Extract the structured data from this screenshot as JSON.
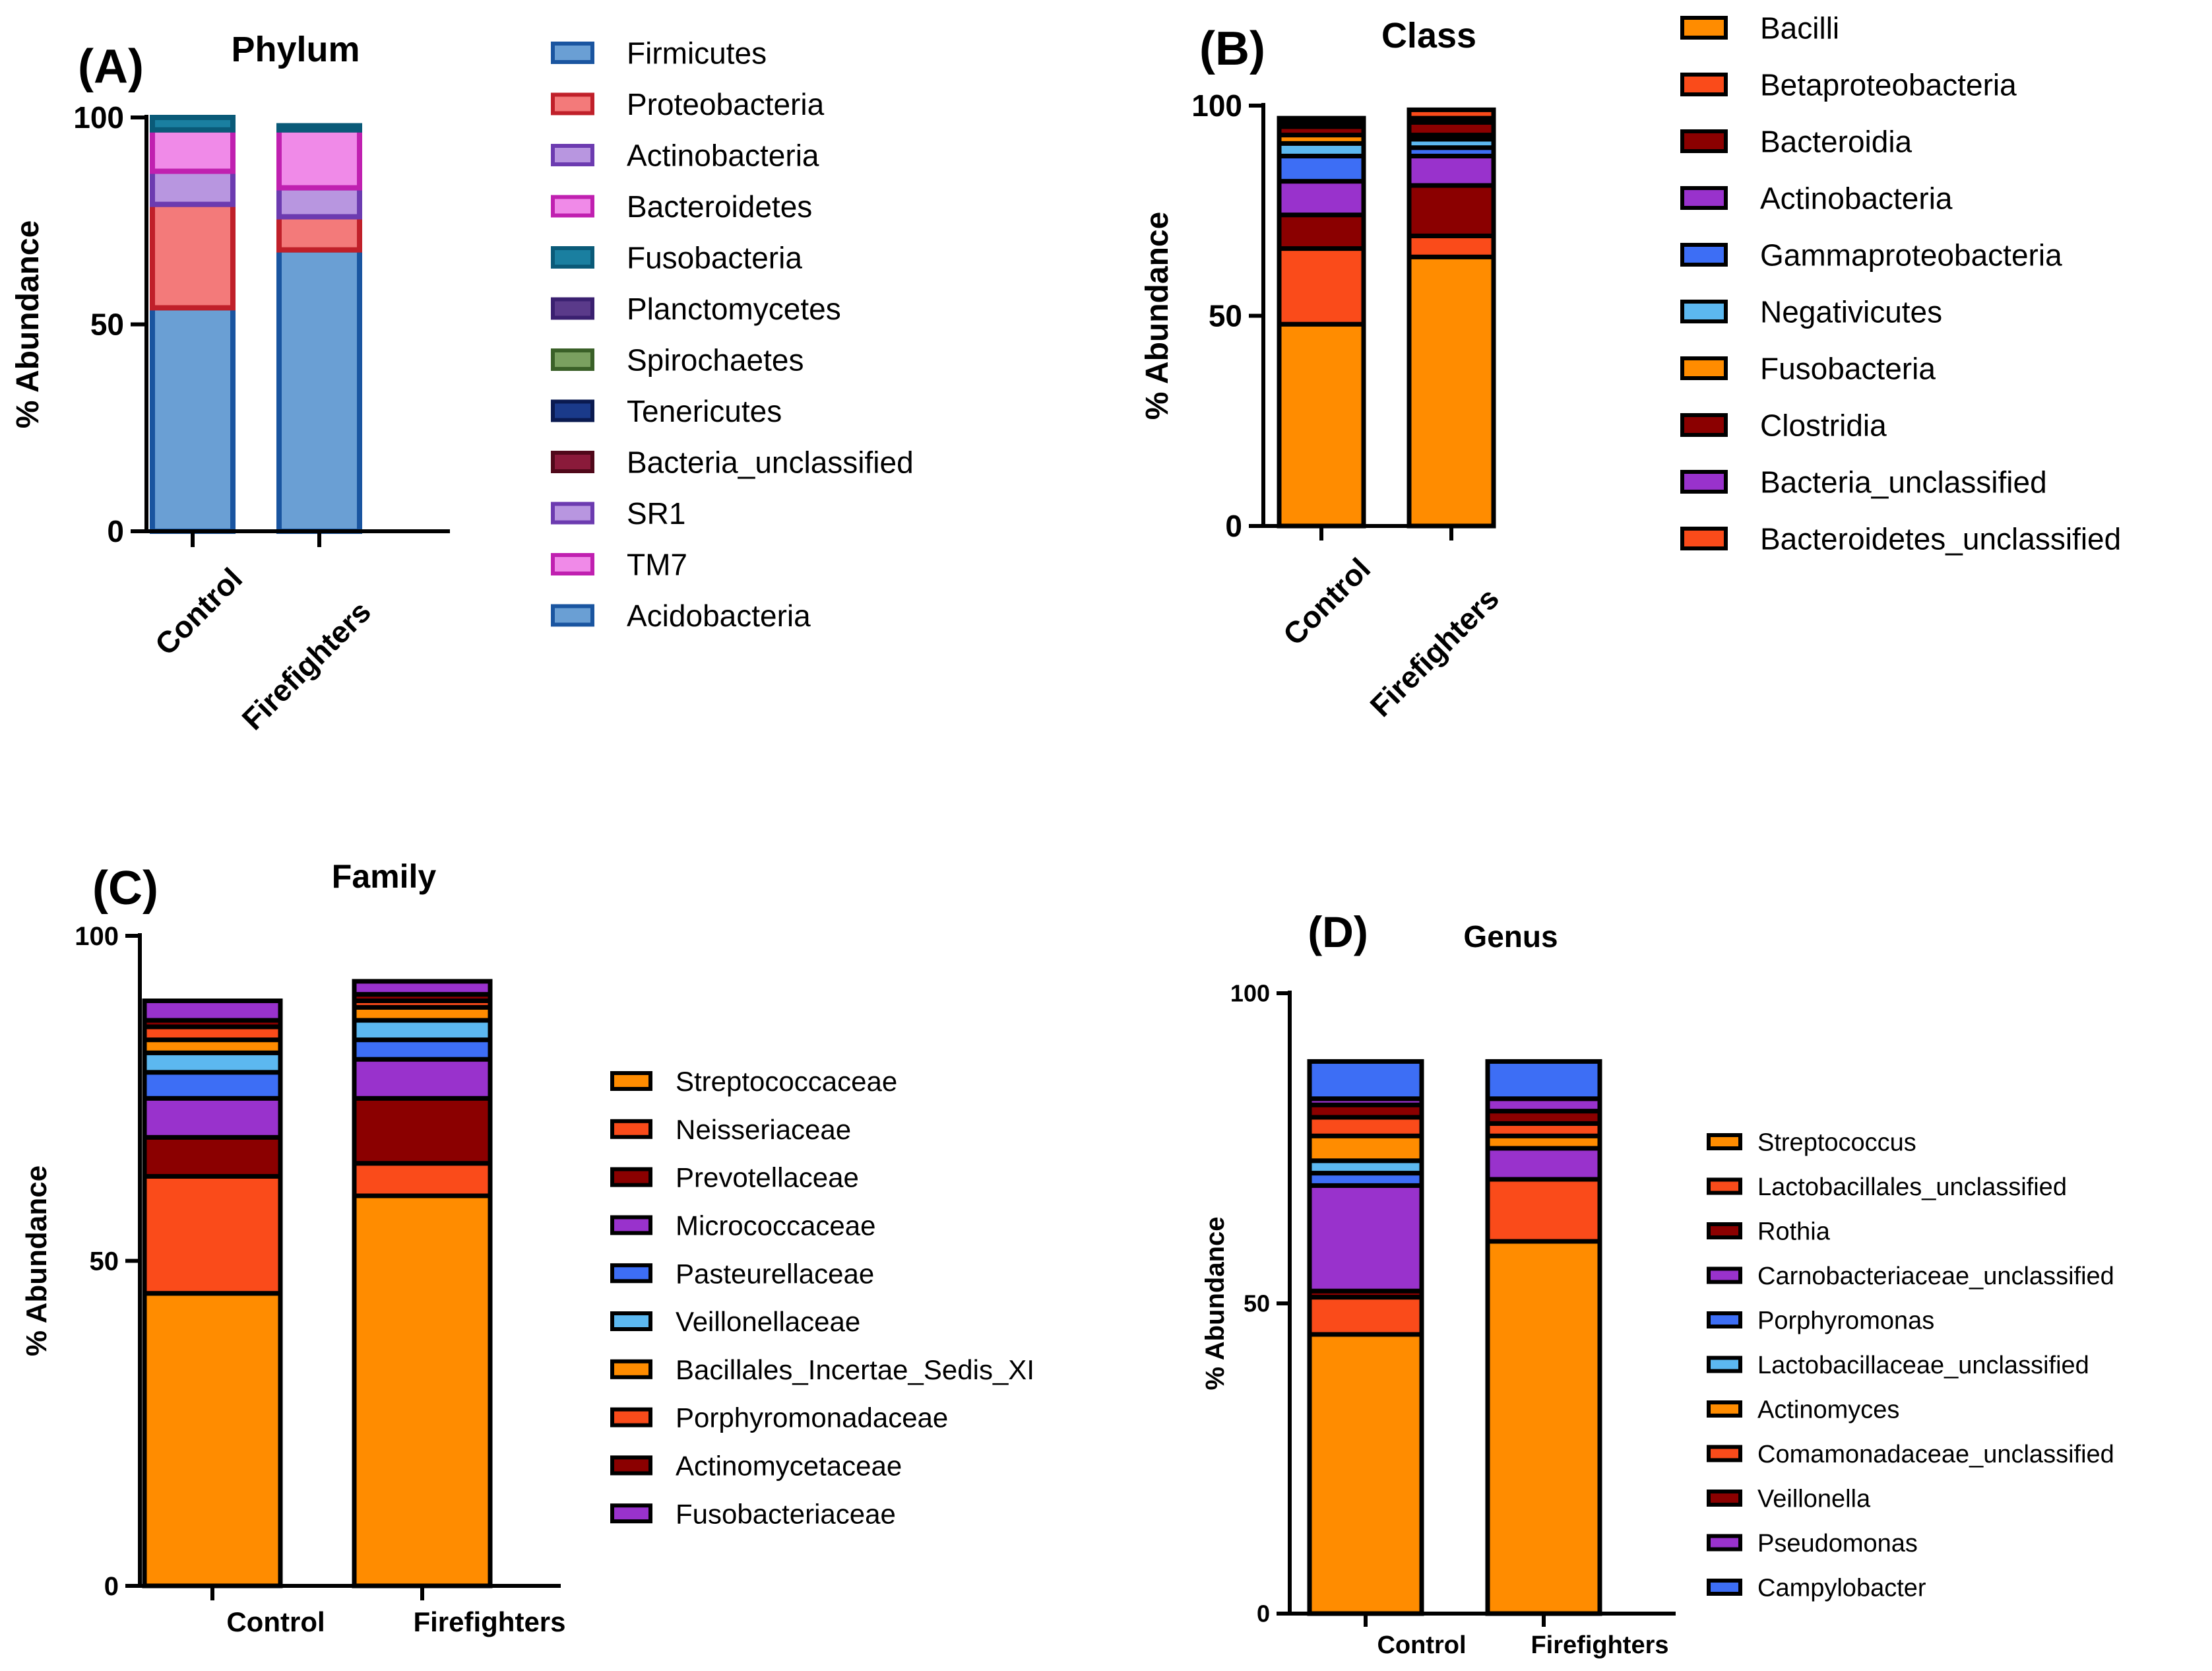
{
  "chart_data": [
    {
      "type": "bar",
      "stacked": true,
      "panel_label": "(A)",
      "title": "Phylum",
      "xlabel": "",
      "ylabel": "% Abundance",
      "ylim": [
        0,
        100
      ],
      "yticks": [
        "0",
        "50",
        "100"
      ],
      "categories": [
        "Control",
        "Firefighters"
      ],
      "series": [
        {
          "name": "Firmicutes",
          "fill": "#6a9fd4",
          "edge": "#1a55a0",
          "values": [
            54,
            68
          ]
        },
        {
          "name": "Proteobacteria",
          "fill": "#f37a7a",
          "edge": "#c0202a",
          "values": [
            25,
            8
          ]
        },
        {
          "name": "Actinobacteria",
          "fill": "#b896e0",
          "edge": "#6c3bb0",
          "values": [
            8,
            7
          ]
        },
        {
          "name": "Bacteroidetes",
          "fill": "#f08ae8",
          "edge": "#c020b0",
          "values": [
            10,
            14
          ]
        },
        {
          "name": "Fusobacteria",
          "fill": "#1a7fa0",
          "edge": "#0a5a78",
          "values": [
            3,
            1
          ]
        },
        {
          "name": "Planctomycetes",
          "fill": "#5a3a8a",
          "edge": "#3a2070",
          "values": [
            0,
            0
          ]
        },
        {
          "name": "Spirochaetes",
          "fill": "#7aa060",
          "edge": "#3a6028",
          "values": [
            0,
            0
          ]
        },
        {
          "name": "Tenericutes",
          "fill": "#1a3a8a",
          "edge": "#0a1a50",
          "values": [
            0,
            0
          ]
        },
        {
          "name": "Bacteria_unclassified",
          "fill": "#8a1a3a",
          "edge": "#50081a",
          "values": [
            0,
            0
          ]
        },
        {
          "name": "SR1",
          "fill": "#b896e0",
          "edge": "#6c3bb0",
          "values": [
            0,
            0
          ]
        },
        {
          "name": "TM7",
          "fill": "#f08ae8",
          "edge": "#c020b0",
          "values": [
            0,
            0
          ]
        },
        {
          "name": "Acidobacteria",
          "fill": "#6a9fd4",
          "edge": "#1a55a0",
          "values": [
            0,
            0
          ]
        }
      ]
    },
    {
      "type": "bar",
      "stacked": true,
      "panel_label": "(B)",
      "title": "Class",
      "xlabel": "",
      "ylabel": "% Abundance",
      "ylim": [
        0,
        100
      ],
      "yticks": [
        "0",
        "50",
        "100"
      ],
      "categories": [
        "Control",
        "Firefighters"
      ],
      "series": [
        {
          "name": "Bacilli",
          "fill": "#ff8c00",
          "edge": "#000000",
          "values": [
            48,
            64
          ]
        },
        {
          "name": "Betaproteobacteria",
          "fill": "#fa4b1a",
          "edge": "#000000",
          "values": [
            18,
            5
          ]
        },
        {
          "name": "Bacteroidia",
          "fill": "#8b0000",
          "edge": "#000000",
          "values": [
            8,
            12
          ]
        },
        {
          "name": "Actinobacteria",
          "fill": "#9932cc",
          "edge": "#000000",
          "values": [
            8,
            7
          ]
        },
        {
          "name": "Gammaproteobacteria",
          "fill": "#3d6ef5",
          "edge": "#000000",
          "values": [
            6,
            2
          ]
        },
        {
          "name": "Negativicutes",
          "fill": "#5cb8f0",
          "edge": "#000000",
          "values": [
            3,
            2
          ]
        },
        {
          "name": "Fusobacteria",
          "fill": "#ff8c00",
          "edge": "#000000",
          "values": [
            2,
            1
          ]
        },
        {
          "name": "Clostridia",
          "fill": "#8b0000",
          "edge": "#000000",
          "values": [
            2,
            3
          ]
        },
        {
          "name": "Bacteria_unclassified",
          "fill": "#9932cc",
          "edge": "#000000",
          "values": [
            1,
            1
          ]
        },
        {
          "name": "Bacteroidetes_unclassified",
          "fill": "#fa4b1a",
          "edge": "#000000",
          "values": [
            1,
            2
          ]
        }
      ]
    },
    {
      "type": "bar",
      "stacked": true,
      "panel_label": "(C)",
      "title": "Family",
      "xlabel": "",
      "ylabel": "% Abundance",
      "ylim": [
        0,
        100
      ],
      "yticks": [
        "0",
        "50",
        "100"
      ],
      "categories": [
        "Control",
        "Firefighters"
      ],
      "series": [
        {
          "name": "Streptococcaceae",
          "fill": "#ff8c00",
          "edge": "#000000",
          "values": [
            45,
            60
          ]
        },
        {
          "name": "Neisseriaceae",
          "fill": "#fa4b1a",
          "edge": "#000000",
          "values": [
            18,
            5
          ]
        },
        {
          "name": "Prevotellaceae",
          "fill": "#8b0000",
          "edge": "#000000",
          "values": [
            6,
            10
          ]
        },
        {
          "name": "Micrococcaceae",
          "fill": "#9932cc",
          "edge": "#000000",
          "values": [
            6,
            6
          ]
        },
        {
          "name": "Pasteurellaceae",
          "fill": "#3d6ef5",
          "edge": "#000000",
          "values": [
            4,
            3
          ]
        },
        {
          "name": "Veillonellaceae",
          "fill": "#5cb8f0",
          "edge": "#000000",
          "values": [
            3,
            3
          ]
        },
        {
          "name": "Bacillales_Incertae_Sedis_XI",
          "fill": "#ff8c00",
          "edge": "#000000",
          "values": [
            2,
            2
          ]
        },
        {
          "name": "Porphyromonadaceae",
          "fill": "#fa4b1a",
          "edge": "#000000",
          "values": [
            2,
            1
          ]
        },
        {
          "name": "Actinomycetaceae",
          "fill": "#8b0000",
          "edge": "#000000",
          "values": [
            1,
            1
          ]
        },
        {
          "name": "Fusobacteriaceae",
          "fill": "#9932cc",
          "edge": "#000000",
          "values": [
            3,
            2
          ]
        }
      ]
    },
    {
      "type": "bar",
      "stacked": true,
      "panel_label": "(D)",
      "title": "Genus",
      "xlabel": "",
      "ylabel": "% Abundance",
      "ylim": [
        0,
        100
      ],
      "yticks": [
        "0",
        "50",
        "100"
      ],
      "categories": [
        "Control",
        "Firefighters"
      ],
      "series": [
        {
          "name": "Streptococcus",
          "fill": "#ff8c00",
          "edge": "#000000",
          "values": [
            45,
            60
          ]
        },
        {
          "name": "Lactobacillales_unclassified",
          "fill": "#fa4b1a",
          "edge": "#000000",
          "values": [
            6,
            10
          ]
        },
        {
          "name": "Rothia",
          "fill": "#8b0000",
          "edge": "#000000",
          "values": [
            1,
            0
          ]
        },
        {
          "name": "Carnobacteriaceae_unclassified",
          "fill": "#9932cc",
          "edge": "#000000",
          "values": [
            17,
            5
          ]
        },
        {
          "name": "Porphyromonas",
          "fill": "#3d6ef5",
          "edge": "#000000",
          "values": [
            2,
            0
          ]
        },
        {
          "name": "Lactobacillaceae_unclassified",
          "fill": "#5cb8f0",
          "edge": "#000000",
          "values": [
            2,
            0
          ]
        },
        {
          "name": "Actinomyces",
          "fill": "#ff8c00",
          "edge": "#000000",
          "values": [
            4,
            2
          ]
        },
        {
          "name": "Comamonadaceae_unclassified",
          "fill": "#fa4b1a",
          "edge": "#000000",
          "values": [
            3,
            2
          ]
        },
        {
          "name": "Veillonella",
          "fill": "#8b0000",
          "edge": "#000000",
          "values": [
            2,
            2
          ]
        },
        {
          "name": "Pseudomonas",
          "fill": "#9932cc",
          "edge": "#000000",
          "values": [
            1,
            2
          ]
        },
        {
          "name": "Campylobacter",
          "fill": "#3d6ef5",
          "edge": "#000000",
          "values": [
            6,
            6
          ]
        }
      ]
    }
  ]
}
